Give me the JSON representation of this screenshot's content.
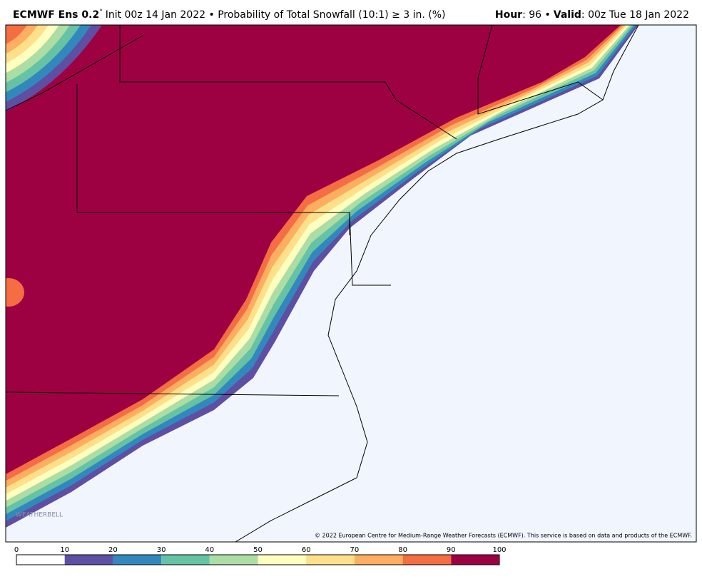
{
  "header": {
    "model": "ECMWF Ens 0.2",
    "degree": "°",
    "description": "Init 00z 14 Jan 2022 • Probability of Total Snowfall (10:1) ≥ 3 in. (%)",
    "hour_label": "Hour",
    "hour_value": ": 96 •",
    "valid_label": "Valid",
    "valid_value": ": 00z Tue 18 Jan 2022"
  },
  "map": {
    "watermark": "WEATHERBELL",
    "copyright": "© 2022 European Centre for Medium-Range Weather Forecasts (ECMWF). This service is based on data and products of the ECMWF."
  },
  "colorbar": {
    "ticks": [
      0,
      10,
      20,
      30,
      40,
      50,
      60,
      70,
      80,
      90,
      100
    ],
    "colors": [
      "#ffffff",
      "#5e4fa2",
      "#3288bd",
      "#66c2a5",
      "#abdda4",
      "#ffffbf",
      "#fee08b",
      "#fdae61",
      "#f46d43",
      "#9e0142"
    ]
  }
}
